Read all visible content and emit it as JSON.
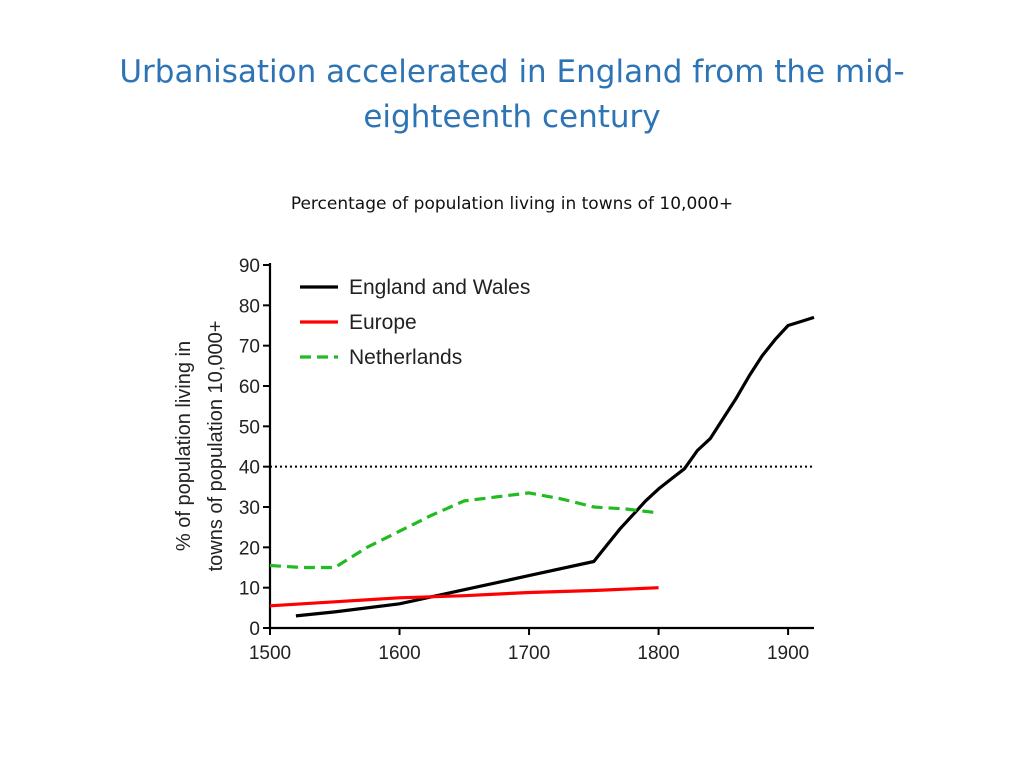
{
  "slide": {
    "title": "Urbanisation accelerated in England from the mid-eighteenth century",
    "subtitle": "Percentage of population  living in towns of 10,000+"
  },
  "colors": {
    "title": "#2E74B5",
    "england_and_wales": "#000000",
    "europe": "#FF0000",
    "netherlands": "#22BB22",
    "reference_line": "#000000"
  },
  "chart_data": {
    "type": "line",
    "title": "",
    "xlabel": "",
    "ylabel": "% of population living in towns of 10,000+",
    "ylabel_lines": [
      "% of population living in",
      "towns of population 10,000+"
    ],
    "xlim": [
      1500,
      1920
    ],
    "ylim": [
      0,
      90
    ],
    "x_ticks": [
      1500,
      1600,
      1700,
      1800,
      1900
    ],
    "y_ticks": [
      0,
      10,
      20,
      30,
      40,
      50,
      60,
      70,
      80,
      90
    ],
    "grid": false,
    "legend_position": "top-left",
    "reference_lines": [
      {
        "y": 40,
        "style": "dotted"
      }
    ],
    "series": [
      {
        "name": "England and Wales",
        "style": "solid",
        "x": [
          1520,
          1550,
          1600,
          1650,
          1700,
          1750,
          1760,
          1770,
          1780,
          1790,
          1800,
          1810,
          1820,
          1830,
          1840,
          1850,
          1860,
          1870,
          1880,
          1890,
          1900,
          1910,
          1920
        ],
        "y": [
          3,
          4,
          6,
          9.5,
          13,
          16.5,
          20.5,
          24.5,
          28,
          31.5,
          34.5,
          37,
          39.5,
          44,
          47,
          52,
          57,
          62.5,
          67.5,
          71.5,
          75,
          76,
          77
        ]
      },
      {
        "name": "Europe",
        "style": "solid",
        "x": [
          1500,
          1550,
          1600,
          1650,
          1700,
          1750,
          1800
        ],
        "y": [
          5.5,
          6.5,
          7.5,
          8,
          8.8,
          9.3,
          10
        ]
      },
      {
        "name": "Netherlands",
        "style": "dashed",
        "x": [
          1500,
          1525,
          1550,
          1575,
          1600,
          1625,
          1650,
          1675,
          1700,
          1725,
          1750,
          1775,
          1800
        ],
        "y": [
          15.5,
          15,
          15,
          20,
          24,
          28,
          31.5,
          32.5,
          33.5,
          32,
          30,
          29.5,
          28.5
        ]
      }
    ]
  }
}
